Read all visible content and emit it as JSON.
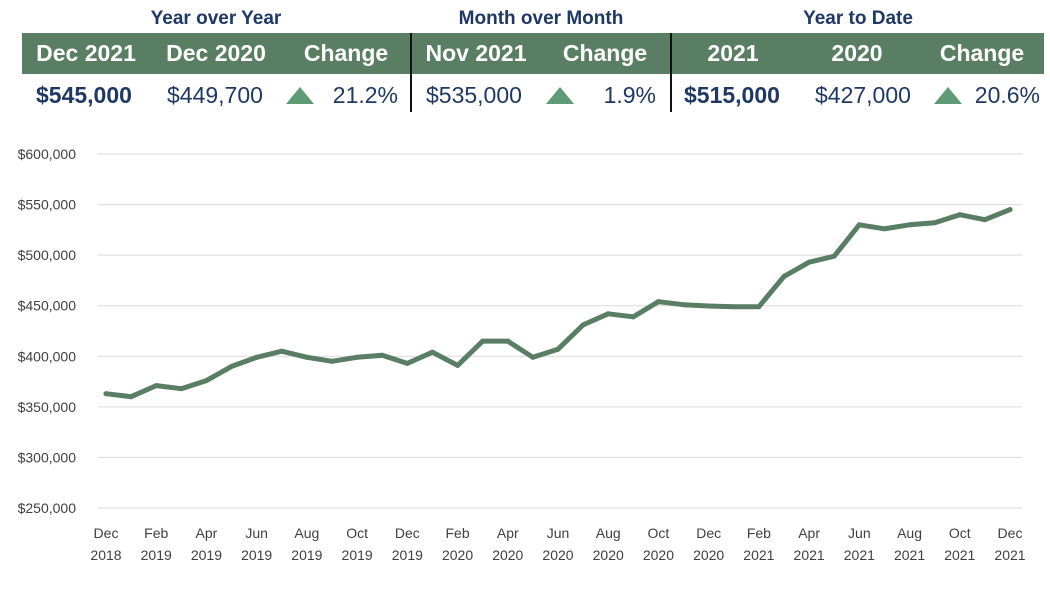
{
  "summary": {
    "groups": [
      {
        "title": "Year over Year",
        "headers": [
          "Dec 2021",
          "Dec 2020",
          "Change"
        ],
        "values": [
          "$545,000",
          "$449,700"
        ],
        "change": "21.2%"
      },
      {
        "title": "Month over Month",
        "headers": [
          "Nov 2021",
          "Change"
        ],
        "values": [
          "$535,000"
        ],
        "change": "1.9%"
      },
      {
        "title": "Year to Date",
        "headers": [
          "2021",
          "2020",
          "Change"
        ],
        "values": [
          "$515,000",
          "$427,000"
        ],
        "change": "20.6%"
      }
    ],
    "up_icon": "triangle-up-icon"
  },
  "colors": {
    "header_bg": "#5a7e63",
    "line": "#5a7e63",
    "title_text": "#1f3864",
    "up_triangle": "#5f9a76",
    "grid": "#d9d9d9"
  },
  "chart_data": {
    "type": "line",
    "title": "",
    "xlabel": "",
    "ylabel": "",
    "ylim": [
      250000,
      600000
    ],
    "y_ticks": [
      {
        "value": 600000,
        "label": "$600,000"
      },
      {
        "value": 550000,
        "label": "$550,000"
      },
      {
        "value": 500000,
        "label": "$500,000"
      },
      {
        "value": 450000,
        "label": "$450,000"
      },
      {
        "value": 400000,
        "label": "$400,000"
      },
      {
        "value": 350000,
        "label": "$350,000"
      },
      {
        "value": 300000,
        "label": "$300,000"
      },
      {
        "value": 250000,
        "label": "$250,000"
      }
    ],
    "x_tick_labels": [
      [
        "Dec",
        "2018"
      ],
      [
        "Feb",
        "2019"
      ],
      [
        "Apr",
        "2019"
      ],
      [
        "Jun",
        "2019"
      ],
      [
        "Aug",
        "2019"
      ],
      [
        "Oct",
        "2019"
      ],
      [
        "Dec",
        "2019"
      ],
      [
        "Feb",
        "2020"
      ],
      [
        "Apr",
        "2020"
      ],
      [
        "Jun",
        "2020"
      ],
      [
        "Aug",
        "2020"
      ],
      [
        "Oct",
        "2020"
      ],
      [
        "Dec",
        "2020"
      ],
      [
        "Feb",
        "2021"
      ],
      [
        "Apr",
        "2021"
      ],
      [
        "Jun",
        "2021"
      ],
      [
        "Aug",
        "2021"
      ],
      [
        "Oct",
        "2021"
      ],
      [
        "Dec",
        "2021"
      ]
    ],
    "grid": true,
    "legend": "none",
    "series": [
      {
        "x": [
          "Dec 2018",
          "Jan 2019",
          "Feb 2019",
          "Mar 2019",
          "Apr 2019",
          "May 2019",
          "Jun 2019",
          "Jul 2019",
          "Aug 2019",
          "Sep 2019",
          "Oct 2019",
          "Nov 2019",
          "Dec 2019",
          "Jan 2020",
          "Feb 2020",
          "Mar 2020",
          "Apr 2020",
          "May 2020",
          "Jun 2020",
          "Jul 2020",
          "Aug 2020",
          "Sep 2020",
          "Oct 2020",
          "Nov 2020",
          "Dec 2020",
          "Jan 2021",
          "Feb 2021",
          "Mar 2021",
          "Apr 2021",
          "May 2021",
          "Jun 2021",
          "Jul 2021",
          "Aug 2021",
          "Sep 2021",
          "Oct 2021",
          "Nov 2021",
          "Dec 2021"
        ],
        "values": [
          363000,
          360000,
          371000,
          368000,
          376000,
          390000,
          399000,
          405000,
          399000,
          395000,
          399000,
          401000,
          393000,
          404000,
          391000,
          415000,
          415000,
          399000,
          407000,
          431000,
          442000,
          439000,
          454000,
          451000,
          449700,
          449000,
          449000,
          479000,
          493000,
          499000,
          530000,
          526000,
          530000,
          532000,
          540000,
          535000,
          545000
        ]
      }
    ]
  }
}
